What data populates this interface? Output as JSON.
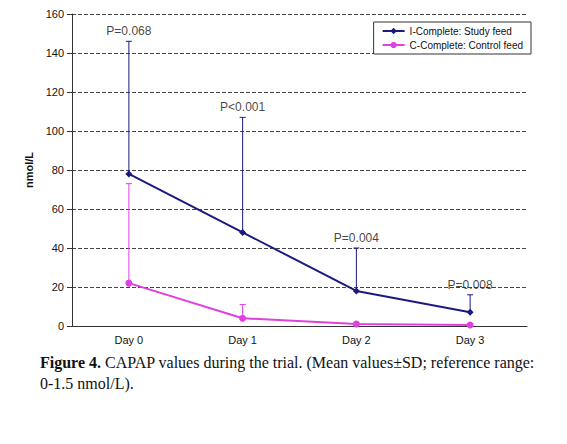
{
  "chart_data": {
    "type": "line",
    "title": "Figure 4. CAPAP values during the trial. (Mean values±SD; reference range: 0-1.5 nmol/L).",
    "y_label": "nmol/L",
    "categories": [
      "Day 0",
      "Day 1",
      "Day 2",
      "Day 3"
    ],
    "series": [
      {
        "name": "I-Complete: Study feed",
        "color": "#1a1a7e",
        "marker": "diamond",
        "values": [
          78,
          48,
          18,
          7
        ],
        "errors": [
          68,
          59,
          22,
          9
        ]
      },
      {
        "name": "C-Complete: Control feed",
        "color": "#e040e0",
        "marker": "circle",
        "values": [
          22,
          4,
          1,
          0.5
        ],
        "errors": [
          51,
          7,
          0.5,
          0.3
        ]
      }
    ],
    "annotations": [
      {
        "x": "Day 0",
        "text": "P=0.068"
      },
      {
        "x": "Day 1",
        "text": "P<0.001"
      },
      {
        "x": "Day 2",
        "text": "P=0.004"
      },
      {
        "x": "Day 3",
        "text": "P=0.008"
      }
    ],
    "ylim": [
      0,
      160
    ],
    "yticks": [
      0,
      20,
      40,
      60,
      80,
      100,
      120,
      140,
      160
    ],
    "grid": true,
    "legend": "upper right"
  }
}
